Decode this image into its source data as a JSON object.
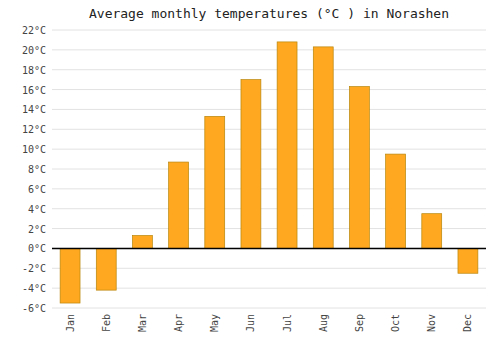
{
  "chart_data": {
    "type": "bar",
    "title": "Average monthly temperatures (°C ) in Norashen",
    "categories": [
      "Jan",
      "Feb",
      "Mar",
      "Apr",
      "May",
      "Jun",
      "Jul",
      "Aug",
      "Sep",
      "Oct",
      "Nov",
      "Dec"
    ],
    "values": [
      -5.5,
      -4.2,
      1.3,
      8.7,
      13.3,
      17.0,
      20.8,
      20.3,
      16.3,
      9.5,
      3.5,
      -2.5
    ],
    "color": "#FFA820",
    "ylim": [
      -6,
      22
    ],
    "yticks": [
      {
        "value": -6,
        "label": "-6°C"
      },
      {
        "value": -4,
        "label": "-4°C"
      },
      {
        "value": -2,
        "label": "-2°C"
      },
      {
        "value": 0,
        "label": "0°C"
      },
      {
        "value": 2,
        "label": "2°C"
      },
      {
        "value": 4,
        "label": "4°C"
      },
      {
        "value": 6,
        "label": "6°C"
      },
      {
        "value": 8,
        "label": "8°C"
      },
      {
        "value": 10,
        "label": "10°C"
      },
      {
        "value": 12,
        "label": "12°C"
      },
      {
        "value": 14,
        "label": "14°C"
      },
      {
        "value": 16,
        "label": "16°C"
      },
      {
        "value": 18,
        "label": "18°C"
      },
      {
        "value": 20,
        "label": "20°C"
      },
      {
        "value": 22,
        "label": "22°C"
      }
    ],
    "grid": true
  }
}
